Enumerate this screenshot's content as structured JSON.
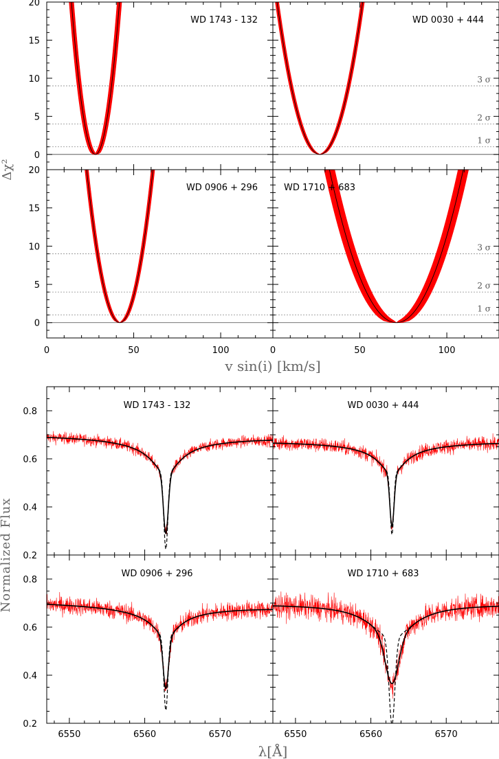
{
  "colors": {
    "data": "#ff0000",
    "model": "#000000",
    "sigma_line": "#9a9a9a",
    "axis": "#000000",
    "axis_label": "#666666"
  },
  "chart_data": [
    {
      "type": "line",
      "kind": "chi2",
      "xlabel": "v sin(i) [km/s]",
      "ylabel": "Δχ²",
      "xlim": [
        0,
        130
      ],
      "ylim": [
        -2,
        20
      ],
      "xticks": [
        0,
        50,
        100
      ],
      "yticks": [
        0,
        5,
        10,
        15,
        20
      ],
      "sigma_levels": [
        {
          "label": "1 σ",
          "value": 1
        },
        {
          "label": "2 σ",
          "value": 4
        },
        {
          "label": "3 σ",
          "value": 9
        }
      ],
      "panels": [
        {
          "name": "WD 1743 - 132",
          "best_v": 28,
          "curvature": 0.105,
          "band_width": 1.3
        },
        {
          "name": "WD 0030 + 444",
          "best_v": 27,
          "curvature": 0.033,
          "band_width": 1.0
        },
        {
          "name": "WD 0906 + 296",
          "best_v": 42,
          "curvature": 0.055,
          "band_width": 1.0
        },
        {
          "name": "WD 1710 + 683",
          "best_v": 71,
          "curvature": 0.0135,
          "band_width": 3.0
        }
      ]
    },
    {
      "type": "line",
      "kind": "spectrum",
      "xlabel": "λ[Å]",
      "ylabel": "Normalized Flux",
      "xlim": [
        6547,
        6577
      ],
      "ylim": [
        0.2,
        0.9
      ],
      "xticks": [
        6550,
        6560,
        6570
      ],
      "yticks": [
        0.2,
        0.4,
        0.6,
        0.8
      ],
      "line_center": 6562.8,
      "panels": [
        {
          "name": "WD 1743 - 132",
          "continuum": [
            0.695,
            0.685
          ],
          "slope_near": 0.055,
          "model_depth": 0.245,
          "model_width": 0.32,
          "dashed_depth": 0.31,
          "dashed_width": 0.27,
          "wing_depth": 0.1,
          "wing_width": 2.2,
          "noise": 0.022
        },
        {
          "name": "WD 0030 + 444",
          "continuum": [
            0.67,
            0.67
          ],
          "slope_near": 0.045,
          "model_depth": 0.215,
          "model_width": 0.28,
          "dashed_depth": 0.25,
          "dashed_width": 0.23,
          "wing_depth": 0.09,
          "wing_width": 2.0,
          "noise": 0.028
        },
        {
          "name": "WD 0906 + 296",
          "continuum": [
            0.7,
            0.68
          ],
          "slope_near": 0.055,
          "model_depth": 0.21,
          "model_width": 0.35,
          "dashed_depth": 0.3,
          "dashed_width": 0.27,
          "wing_depth": 0.08,
          "wing_width": 2.0,
          "noise": 0.035
        },
        {
          "name": "WD 1710 + 683",
          "continuum": [
            0.695,
            0.695
          ],
          "slope_near": 0.0,
          "model_depth": 0.19,
          "model_width": 0.85,
          "dashed_depth": 0.36,
          "dashed_width": 0.38,
          "wing_depth": 0.14,
          "wing_width": 3.5,
          "noise": 0.045
        }
      ]
    }
  ]
}
